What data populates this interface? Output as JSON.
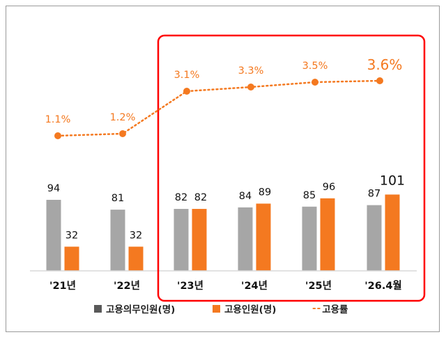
{
  "chart_data": {
    "type": "bar",
    "title": "",
    "xlabel": "",
    "ylabel": "",
    "categories": [
      "'21년",
      "'22년",
      "'23년",
      "'24년",
      "'25년",
      "'26.4월"
    ],
    "series": [
      {
        "name": "고용의무인원(명)",
        "type": "bar",
        "color": "#a6a6a6",
        "values": [
          94,
          81,
          82,
          84,
          85,
          87
        ]
      },
      {
        "name": "고용인원(명)",
        "type": "bar",
        "color": "#f47920",
        "values": [
          32,
          32,
          82,
          89,
          96,
          101
        ]
      },
      {
        "name": "고용률",
        "type": "line",
        "style": "dotted",
        "color": "#f47920",
        "values": [
          1.1,
          1.2,
          3.1,
          3.3,
          3.5,
          3.6
        ],
        "unit": "%"
      }
    ],
    "bar_labels": {
      "required": [
        "94",
        "81",
        "82",
        "84",
        "85",
        "87"
      ],
      "employed": [
        "32",
        "32",
        "82",
        "89",
        "96",
        "101"
      ]
    },
    "rate_labels": [
      "1.1%",
      "1.2%",
      "3.1%",
      "3.3%",
      "3.5%",
      "3.6%"
    ],
    "grid": false,
    "legend_position": "bottom",
    "annotations": [
      {
        "type": "highlight-box",
        "color": "#ff0000",
        "covers": [
          "'23년",
          "'24년",
          "'25년",
          "'26.4월"
        ]
      }
    ]
  },
  "legend": {
    "items": [
      {
        "label": "고용의무인원(명)",
        "color": "#595959",
        "kind": "square"
      },
      {
        "label": "고용인원(명)",
        "color": "#f47920",
        "kind": "square"
      },
      {
        "label": "고용률",
        "color": "#f47920",
        "kind": "dash",
        "dash_glyph": "--"
      }
    ]
  },
  "colors": {
    "gray_bar": "#a6a6a6",
    "orange": "#f47920",
    "highlight": "#ff0000",
    "baseline": "#d9d9d9",
    "frame": "#9a9a9a"
  }
}
